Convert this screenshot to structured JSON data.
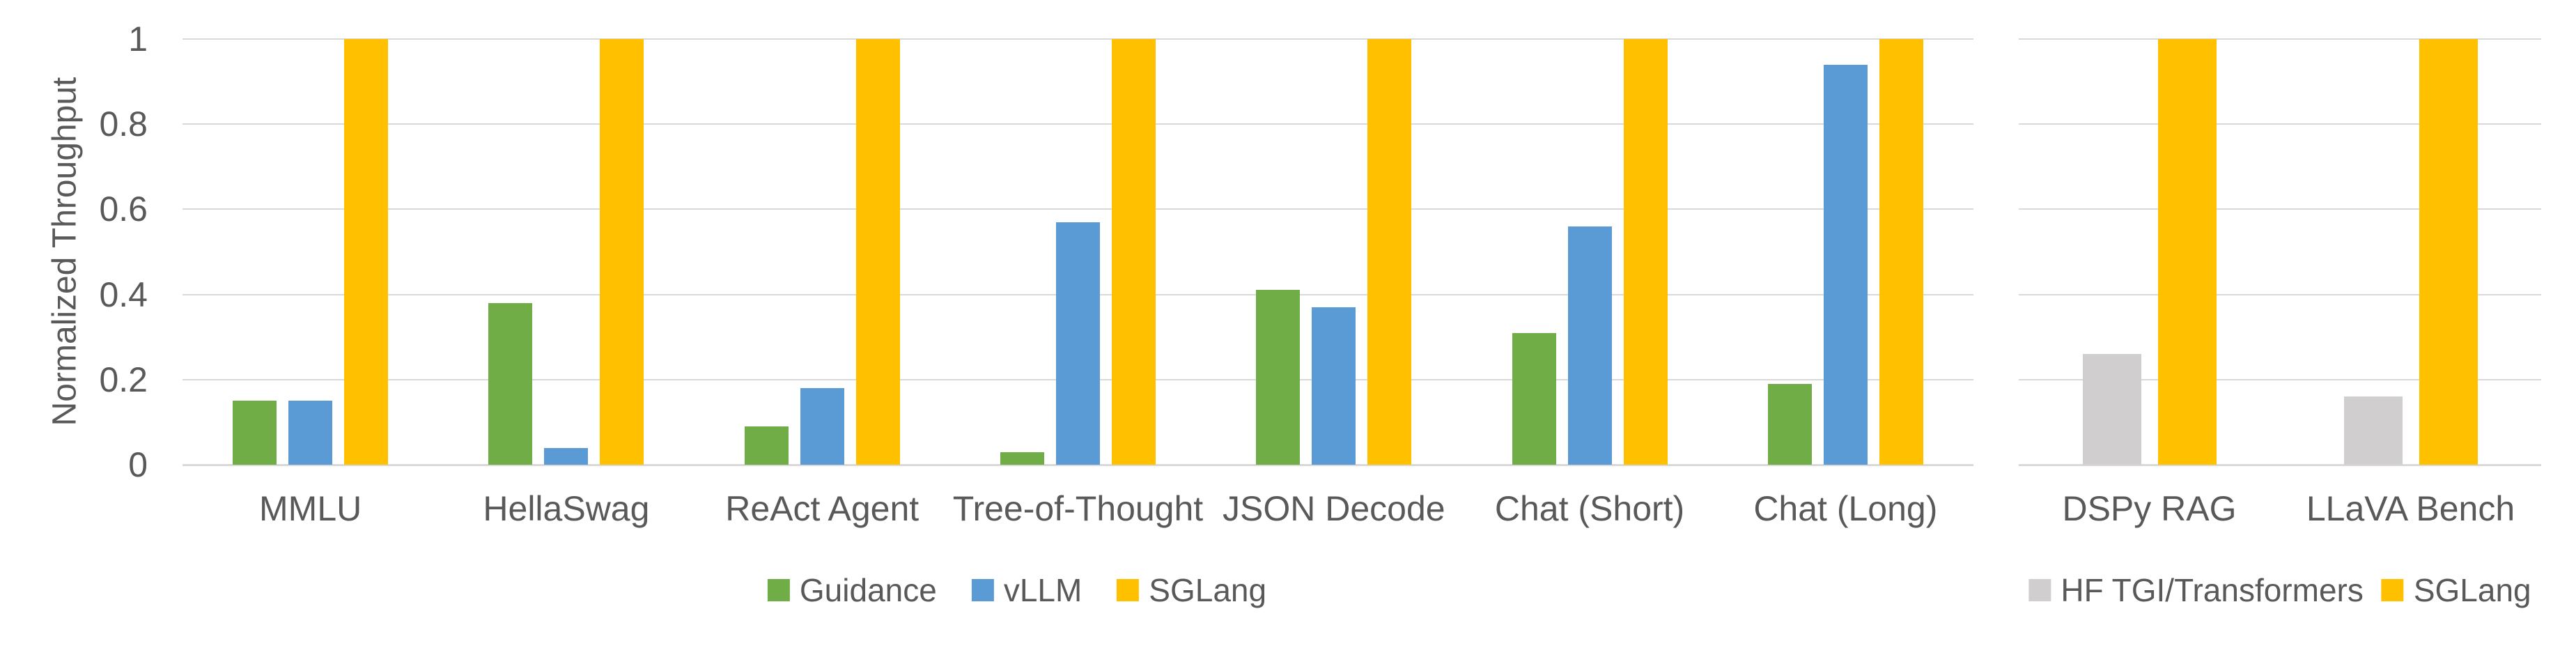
{
  "y_axis": {
    "title": "Normalized Throughput",
    "ticks": [
      {
        "label": "1",
        "value": 1.0
      },
      {
        "label": "0.8",
        "value": 0.8
      },
      {
        "label": "0.6",
        "value": 0.6
      },
      {
        "label": "0.4",
        "value": 0.4
      },
      {
        "label": "0.2",
        "value": 0.2
      },
      {
        "label": "0",
        "value": 0.0
      }
    ]
  },
  "colors": {
    "guidance_green": "#70AD47",
    "vllm_blue": "#5B9BD5",
    "sglang_yellow": "#FFC000",
    "hf_gray": "#D0CECE",
    "text_gray": "#595959",
    "gridline_gray": "#D9D9D9",
    "background": "#FFFFFF"
  },
  "chart_data": [
    {
      "type": "bar",
      "title": "",
      "ylabel": "Normalized Throughput",
      "ylim": [
        0,
        1
      ],
      "grid": true,
      "legend_position": "bottom",
      "categories": [
        "MMLU",
        "HellaSwag",
        "ReAct Agent",
        "Tree-of-Thought",
        "JSON Decode",
        "Chat (Short)",
        "Chat (Long)"
      ],
      "series": [
        {
          "name": "Guidance",
          "color": "#70AD47",
          "values": [
            0.15,
            0.38,
            0.09,
            0.03,
            0.41,
            0.31,
            0.19
          ]
        },
        {
          "name": "vLLM",
          "color": "#5B9BD5",
          "values": [
            0.15,
            0.04,
            0.18,
            0.57,
            0.37,
            0.56,
            0.94
          ]
        },
        {
          "name": "SGLang",
          "color": "#FFC000",
          "values": [
            1.0,
            1.0,
            1.0,
            1.0,
            1.0,
            1.0,
            1.0
          ]
        }
      ]
    },
    {
      "type": "bar",
      "title": "",
      "ylabel": "",
      "ylim": [
        0,
        1
      ],
      "grid": true,
      "legend_position": "bottom",
      "categories": [
        "DSPy RAG",
        "LLaVA Bench"
      ],
      "series": [
        {
          "name": "HF TGI/Transformers",
          "color": "#D0CECE",
          "values": [
            0.26,
            0.16
          ]
        },
        {
          "name": "SGLang",
          "color": "#FFC000",
          "values": [
            1.0,
            1.0
          ]
        }
      ]
    }
  ]
}
